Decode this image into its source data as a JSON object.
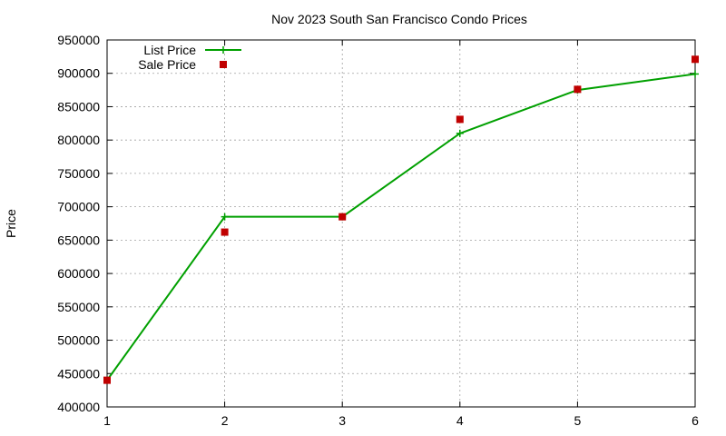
{
  "chart_data": {
    "type": "line",
    "title": "Nov 2023 South San Francisco Condo Prices",
    "xlabel": "",
    "ylabel": "Price",
    "x": [
      1,
      2,
      3,
      4,
      5,
      6
    ],
    "xlim": [
      1,
      6
    ],
    "ylim": [
      400000,
      950000
    ],
    "xticks": [
      "1",
      "2",
      "3",
      "4",
      "5",
      "6"
    ],
    "yticks": [
      "400000",
      "450000",
      "500000",
      "550000",
      "600000",
      "650000",
      "700000",
      "750000",
      "800000",
      "850000",
      "900000",
      "950000"
    ],
    "grid": true,
    "legend_position": "top-left",
    "series": [
      {
        "name": "List Price",
        "style": "line+cross",
        "color": "#00a000",
        "values": [
          440000,
          685000,
          685000,
          810000,
          875000,
          899000
        ]
      },
      {
        "name": "Sale Price",
        "style": "square-points",
        "color": "#c00000",
        "values": [
          440000,
          662000,
          685000,
          831000,
          876000,
          921000
        ]
      }
    ]
  }
}
